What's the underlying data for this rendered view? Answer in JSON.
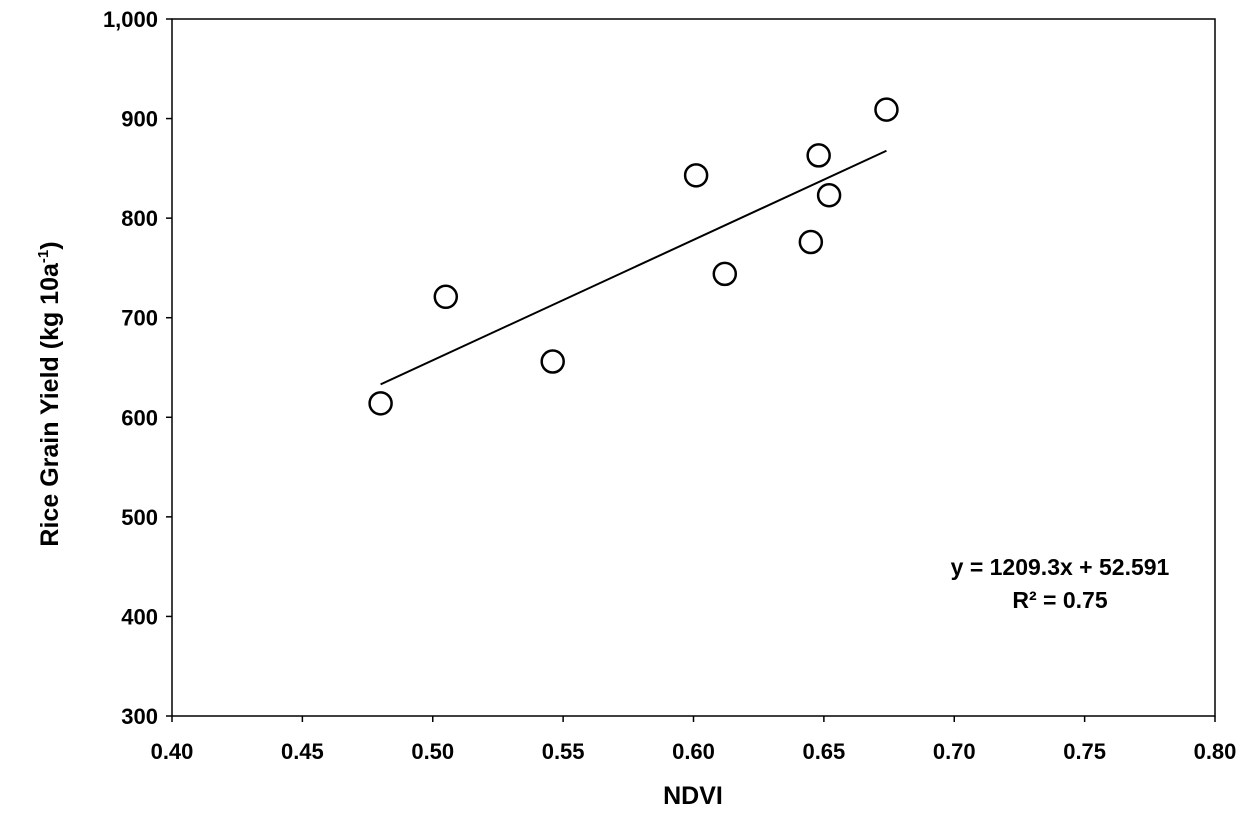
{
  "chart_data": {
    "type": "scatter",
    "title": "",
    "xlabel": "NDVI",
    "ylabel_main": "Rice Grain Yield (kg 10a",
    "ylabel_sup": "-1",
    "ylabel_close": ")",
    "xlim": [
      0.4,
      0.8
    ],
    "ylim": [
      300,
      1000
    ],
    "x_ticks": [
      0.4,
      0.45,
      0.5,
      0.55,
      0.6,
      0.65,
      0.7,
      0.75,
      0.8
    ],
    "x_tick_labels": [
      "0.40",
      "0.45",
      "0.50",
      "0.55",
      "0.60",
      "0.65",
      "0.70",
      "0.75",
      "0.80"
    ],
    "y_ticks": [
      300,
      400,
      500,
      600,
      700,
      800,
      900,
      1000
    ],
    "y_tick_labels": [
      "300",
      "400",
      "500",
      "600",
      "700",
      "800",
      "900",
      "1,000"
    ],
    "grid": false,
    "series": [
      {
        "points": [
          {
            "x": 0.48,
            "y": 614
          },
          {
            "x": 0.505,
            "y": 721
          },
          {
            "x": 0.546,
            "y": 656
          },
          {
            "x": 0.601,
            "y": 843
          },
          {
            "x": 0.612,
            "y": 744
          },
          {
            "x": 0.645,
            "y": 776
          },
          {
            "x": 0.648,
            "y": 863
          },
          {
            "x": 0.652,
            "y": 823
          },
          {
            "x": 0.674,
            "y": 909
          }
        ]
      }
    ],
    "trendline": {
      "slope": 1209.3,
      "intercept": 52.591,
      "x_range": [
        0.48,
        0.674
      ]
    },
    "annotation": {
      "equation": "y = 1209.3x + 52.591",
      "r_squared": "R² = 0.75"
    }
  }
}
